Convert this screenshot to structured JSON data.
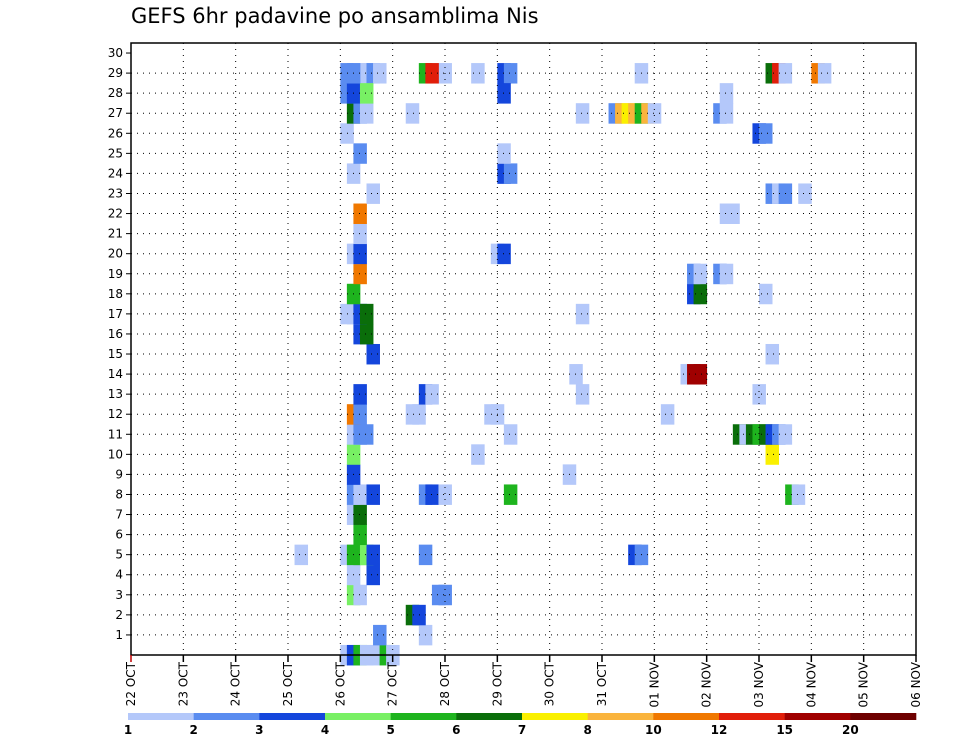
{
  "chart_data": {
    "type": "heatmap",
    "title": "GEFS 6hr padavine po ansamblima Nis",
    "xlabel": "",
    "ylabel": "",
    "x_tick_labels": [
      "22 OCT",
      "23 OCT",
      "24 OCT",
      "25 OCT",
      "26 OCT",
      "27 OCT",
      "28 OCT",
      "29 OCT",
      "30 OCT",
      "31 OCT",
      "01 NOV",
      "02 NOV",
      "03 NOV",
      "04 NOV",
      "05 NOV",
      "06 NOV"
    ],
    "y_tick_labels": [
      "1",
      "2",
      "3",
      "4",
      "5",
      "6",
      "7",
      "8",
      "9",
      "10",
      "11",
      "12",
      "13",
      "14",
      "15",
      "16",
      "17",
      "18",
      "19",
      "20",
      "21",
      "22",
      "23",
      "24",
      "25",
      "26",
      "27",
      "28",
      "29",
      "30"
    ],
    "grid": true,
    "legend_position": "bottom",
    "legend": {
      "bounds": [
        "1",
        "2",
        "3",
        "4",
        "5",
        "6",
        "7",
        "8",
        "10",
        "12",
        "15",
        "20"
      ],
      "colors": [
        "#b4c8fa",
        "#5a8cf0",
        "#1446dc",
        "#78f064",
        "#1eb41e",
        "#0a6e0a",
        "#faf000",
        "#fab43c",
        "#f07800",
        "#e11e0a",
        "#a00000",
        "#6e0000"
      ]
    },
    "cells": [
      {
        "m": 29,
        "t": 16,
        "c": 1
      },
      {
        "m": 29,
        "t": 17,
        "c": 0
      },
      {
        "m": 29,
        "t": 17.5,
        "c": 0
      },
      {
        "m": 29,
        "t": 18,
        "c": 1
      },
      {
        "m": 29,
        "t": 18.5,
        "c": 0
      },
      {
        "m": 29,
        "t": 23,
        "c": 0
      },
      {
        "m": 29,
        "t": 23.5,
        "c": 0
      },
      {
        "m": 29,
        "t": 28,
        "c": 2
      },
      {
        "m": 29,
        "t": 28.5,
        "c": 1
      },
      {
        "m": 0,
        "t": 16,
        "c": 0
      },
      {
        "m": 0,
        "t": 16.5,
        "c": 2
      },
      {
        "m": 0,
        "t": 17,
        "c": 4
      },
      {
        "m": 0,
        "t": 17.5,
        "c": 0
      },
      {
        "m": 0,
        "t": 18,
        "c": 0
      },
      {
        "m": 0,
        "t": 19,
        "c": 4
      },
      {
        "m": 0,
        "t": 19.5,
        "c": 0
      },
      {
        "m": 1,
        "t": 18.5,
        "c": 1
      },
      {
        "m": 1,
        "t": 22,
        "c": 0
      },
      {
        "m": 2,
        "t": 21,
        "c": 5
      },
      {
        "m": 2,
        "t": 21.5,
        "c": 2
      },
      {
        "m": 3,
        "t": 16.5,
        "c": 3
      },
      {
        "m": 3,
        "t": 17,
        "c": 0
      },
      {
        "m": 3,
        "t": 23,
        "c": 1
      },
      {
        "m": 3,
        "t": 23.5,
        "c": 1
      },
      {
        "m": 4,
        "t": 16.5,
        "c": 0
      },
      {
        "m": 4,
        "t": 18,
        "c": 2
      },
      {
        "m": 5,
        "t": 12.5,
        "c": 0
      },
      {
        "m": 5,
        "t": 16,
        "c": 0
      },
      {
        "m": 5,
        "t": 16.5,
        "c": 4
      },
      {
        "m": 5,
        "t": 17,
        "c": 4
      },
      {
        "m": 5,
        "t": 17.5,
        "c": 3
      },
      {
        "m": 5,
        "t": 18,
        "c": 2
      },
      {
        "m": 5,
        "t": 22,
        "c": 1
      },
      {
        "m": 5,
        "t": 38,
        "c": 2
      },
      {
        "m": 5,
        "t": 38.5,
        "c": 1
      },
      {
        "m": 6,
        "t": 17,
        "c": 4
      },
      {
        "m": 7,
        "t": 16.5,
        "c": 0
      },
      {
        "m": 7,
        "t": 17,
        "c": 5
      },
      {
        "m": 8,
        "t": 16.5,
        "c": 1
      },
      {
        "m": 8,
        "t": 17,
        "c": 0
      },
      {
        "m": 8,
        "t": 18,
        "c": 2
      },
      {
        "m": 8,
        "t": 22,
        "c": 1
      },
      {
        "m": 8,
        "t": 22.5,
        "c": 2
      },
      {
        "m": 8,
        "t": 23.5,
        "c": 0
      },
      {
        "m": 8,
        "t": 28.5,
        "c": 4
      },
      {
        "m": 8,
        "t": 50,
        "c": 4
      },
      {
        "m": 8,
        "t": 50.5,
        "c": 0
      },
      {
        "m": 9,
        "t": 16.5,
        "c": 2
      },
      {
        "m": 9,
        "t": 33,
        "c": 0
      },
      {
        "m": 10,
        "t": 16.5,
        "c": 3
      },
      {
        "m": 10,
        "t": 26,
        "c": 0
      },
      {
        "m": 10,
        "t": 48.5,
        "c": 6
      },
      {
        "m": 11,
        "t": 16.5,
        "c": 0
      },
      {
        "m": 11,
        "t": 17,
        "c": 1
      },
      {
        "m": 11,
        "t": 17.5,
        "c": 1
      },
      {
        "m": 11,
        "t": 28.5,
        "c": 0
      },
      {
        "m": 11,
        "t": 46,
        "c": 5
      },
      {
        "m": 11,
        "t": 46.5,
        "c": 0
      },
      {
        "m": 11,
        "t": 47,
        "c": 5
      },
      {
        "m": 11,
        "t": 47.5,
        "c": 4
      },
      {
        "m": 11,
        "t": 48,
        "c": 5
      },
      {
        "m": 11,
        "t": 48.5,
        "c": 2
      },
      {
        "m": 11,
        "t": 49,
        "c": 1
      },
      {
        "m": 11,
        "t": 49.5,
        "c": 0
      },
      {
        "m": 12,
        "t": 16.5,
        "c": 8
      },
      {
        "m": 12,
        "t": 17,
        "c": 1
      },
      {
        "m": 12,
        "t": 21,
        "c": 0
      },
      {
        "m": 12,
        "t": 21.5,
        "c": 0
      },
      {
        "m": 12,
        "t": 27,
        "c": 0
      },
      {
        "m": 12,
        "t": 27.5,
        "c": 0
      },
      {
        "m": 12,
        "t": 40.5,
        "c": 0
      },
      {
        "m": 13,
        "t": 17,
        "c": 2
      },
      {
        "m": 13,
        "t": 22,
        "c": 2
      },
      {
        "m": 13,
        "t": 22.5,
        "c": 0
      },
      {
        "m": 13,
        "t": 34,
        "c": 0
      },
      {
        "m": 13,
        "t": 47.5,
        "c": 0
      },
      {
        "m": 14,
        "t": 33.5,
        "c": 0
      },
      {
        "m": 14,
        "t": 42,
        "c": 0
      },
      {
        "m": 14,
        "t": 42.5,
        "c": 10
      },
      {
        "m": 14,
        "t": 43,
        "c": 10
      },
      {
        "m": 15,
        "t": 18,
        "c": 2
      },
      {
        "m": 15,
        "t": 48.5,
        "c": 0
      },
      {
        "m": 16,
        "t": 17,
        "c": 2
      },
      {
        "m": 16,
        "t": 17.5,
        "c": 5
      },
      {
        "m": 17,
        "t": 16,
        "c": 0
      },
      {
        "m": 17,
        "t": 16.5,
        "c": 0
      },
      {
        "m": 17,
        "t": 17,
        "c": 2
      },
      {
        "m": 17,
        "t": 17.5,
        "c": 5
      },
      {
        "m": 17,
        "t": 34,
        "c": 0
      },
      {
        "m": 18,
        "t": 16.5,
        "c": 4
      },
      {
        "m": 18,
        "t": 42.5,
        "c": 2
      },
      {
        "m": 18,
        "t": 43,
        "c": 5
      },
      {
        "m": 18,
        "t": 48,
        "c": 0
      },
      {
        "m": 19,
        "t": 17,
        "c": 8
      },
      {
        "m": 19,
        "t": 42.5,
        "c": 1
      },
      {
        "m": 19,
        "t": 43,
        "c": 0
      },
      {
        "m": 19,
        "t": 44.5,
        "c": 1
      },
      {
        "m": 19,
        "t": 45,
        "c": 0
      },
      {
        "m": 20,
        "t": 16.5,
        "c": 0
      },
      {
        "m": 20,
        "t": 17,
        "c": 2
      },
      {
        "m": 20,
        "t": 27.5,
        "c": 0
      },
      {
        "m": 20,
        "t": 28,
        "c": 2
      },
      {
        "m": 21,
        "t": 17,
        "c": 0
      },
      {
        "m": 22,
        "t": 17,
        "c": 8
      },
      {
        "m": 22,
        "t": 45,
        "c": 0
      },
      {
        "m": 22,
        "t": 45.5,
        "c": 0
      },
      {
        "m": 23,
        "t": 18,
        "c": 0
      },
      {
        "m": 23,
        "t": 48.5,
        "c": 1
      },
      {
        "m": 23,
        "t": 49,
        "c": 0
      },
      {
        "m": 23,
        "t": 49.5,
        "c": 1
      },
      {
        "m": 23,
        "t": 51,
        "c": 0
      },
      {
        "m": 24,
        "t": 16.5,
        "c": 0
      },
      {
        "m": 24,
        "t": 28,
        "c": 2
      },
      {
        "m": 24,
        "t": 28.5,
        "c": 1
      },
      {
        "m": 25,
        "t": 17,
        "c": 1
      },
      {
        "m": 25,
        "t": 28,
        "c": 0
      },
      {
        "m": 26,
        "t": 16,
        "c": 0
      },
      {
        "m": 26,
        "t": 47.5,
        "c": 2
      },
      {
        "m": 26,
        "t": 48,
        "c": 1
      },
      {
        "m": 27,
        "t": 16.5,
        "c": 5
      },
      {
        "m": 27,
        "t": 17,
        "c": 1
      },
      {
        "m": 27,
        "t": 17.5,
        "c": 0
      },
      {
        "m": 27,
        "t": 21,
        "c": 0
      },
      {
        "m": 27,
        "t": 34,
        "c": 0
      },
      {
        "m": 27,
        "t": 36.5,
        "c": 1
      },
      {
        "m": 27,
        "t": 37,
        "c": 7
      },
      {
        "m": 27,
        "t": 37.5,
        "c": 6
      },
      {
        "m": 27,
        "t": 38,
        "c": 7
      },
      {
        "m": 27,
        "t": 38.5,
        "c": 4
      },
      {
        "m": 27,
        "t": 39,
        "c": 7
      },
      {
        "m": 27,
        "t": 39.5,
        "c": 0
      },
      {
        "m": 27,
        "t": 44.5,
        "c": 1
      },
      {
        "m": 27,
        "t": 45,
        "c": 0
      },
      {
        "m": 28,
        "t": 16,
        "c": 1
      },
      {
        "m": 28,
        "t": 16.5,
        "c": 2
      },
      {
        "m": 28,
        "t": 17.5,
        "c": 3
      },
      {
        "m": 28,
        "t": 28,
        "c": 2
      },
      {
        "m": 28,
        "t": 45,
        "c": 0
      },
      {
        "m": 29,
        "t": 16.5,
        "c": 1
      },
      {
        "m": 29,
        "t": 22,
        "c": 4
      },
      {
        "m": 29,
        "t": 22.5,
        "c": 9
      },
      {
        "m": 29,
        "t": 26,
        "c": 0
      },
      {
        "m": 29,
        "t": 38.5,
        "c": 0
      },
      {
        "m": 29,
        "t": 48.5,
        "c": 5
      },
      {
        "m": 29,
        "t": 49,
        "c": 9
      },
      {
        "m": 29,
        "t": 49.5,
        "c": 0
      },
      {
        "m": 29,
        "t": 52,
        "c": 8
      },
      {
        "m": 29,
        "t": 52.5,
        "c": 0
      }
    ]
  }
}
